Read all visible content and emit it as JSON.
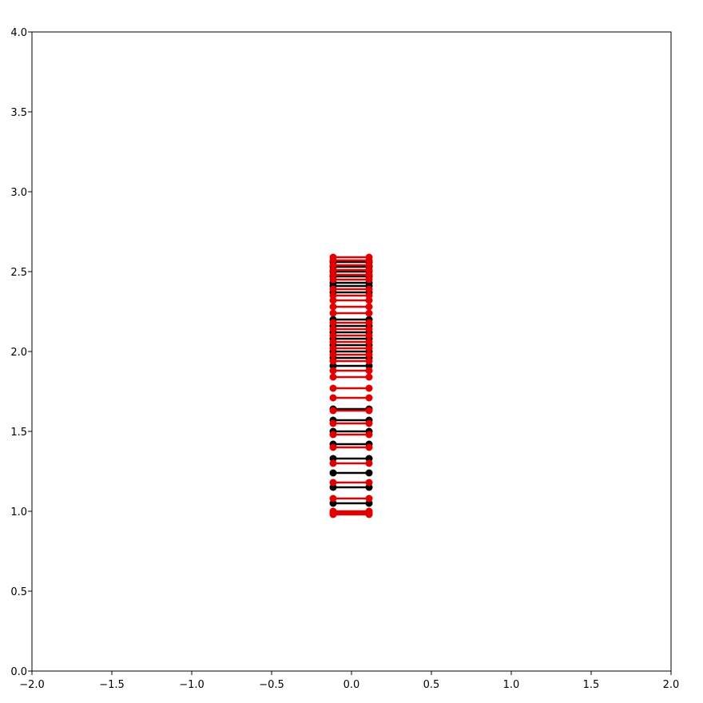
{
  "chart_data": {
    "type": "line",
    "title": "",
    "xlabel": "",
    "ylabel": "",
    "xlim": [
      -2.0,
      2.0
    ],
    "ylim": [
      0.0,
      4.0
    ],
    "grid": false,
    "x_ticks": [
      "−2.0",
      "−1.5",
      "−1.0",
      "−0.5",
      "0.0",
      "0.5",
      "1.0",
      "1.5",
      "2.0"
    ],
    "y_ticks": [
      "0.0",
      "0.5",
      "1.0",
      "1.5",
      "2.0",
      "2.5",
      "3.0",
      "3.5",
      "4.0"
    ],
    "segment_x": [
      -0.115,
      0.11
    ],
    "series": [
      {
        "color": "#000000",
        "y": [
          1.05,
          1.15,
          1.24,
          1.33,
          1.42,
          1.5,
          1.57,
          1.64,
          1.91,
          1.96,
          2.0,
          2.04,
          2.08,
          2.12,
          2.16,
          2.2,
          2.37,
          2.41,
          2.43,
          2.47,
          2.5,
          2.53,
          2.56
        ]
      },
      {
        "color": "#e00000",
        "y": [
          0.98,
          0.99,
          1.0,
          1.08,
          1.18,
          1.3,
          1.4,
          1.48,
          1.55,
          1.63,
          1.71,
          1.77,
          1.84,
          1.88,
          1.94,
          1.98,
          2.02,
          2.06,
          2.1,
          2.14,
          2.18,
          2.24,
          2.28,
          2.32,
          2.35,
          2.39,
          2.45,
          2.48,
          2.51,
          2.54,
          2.57,
          2.59
        ]
      }
    ]
  }
}
